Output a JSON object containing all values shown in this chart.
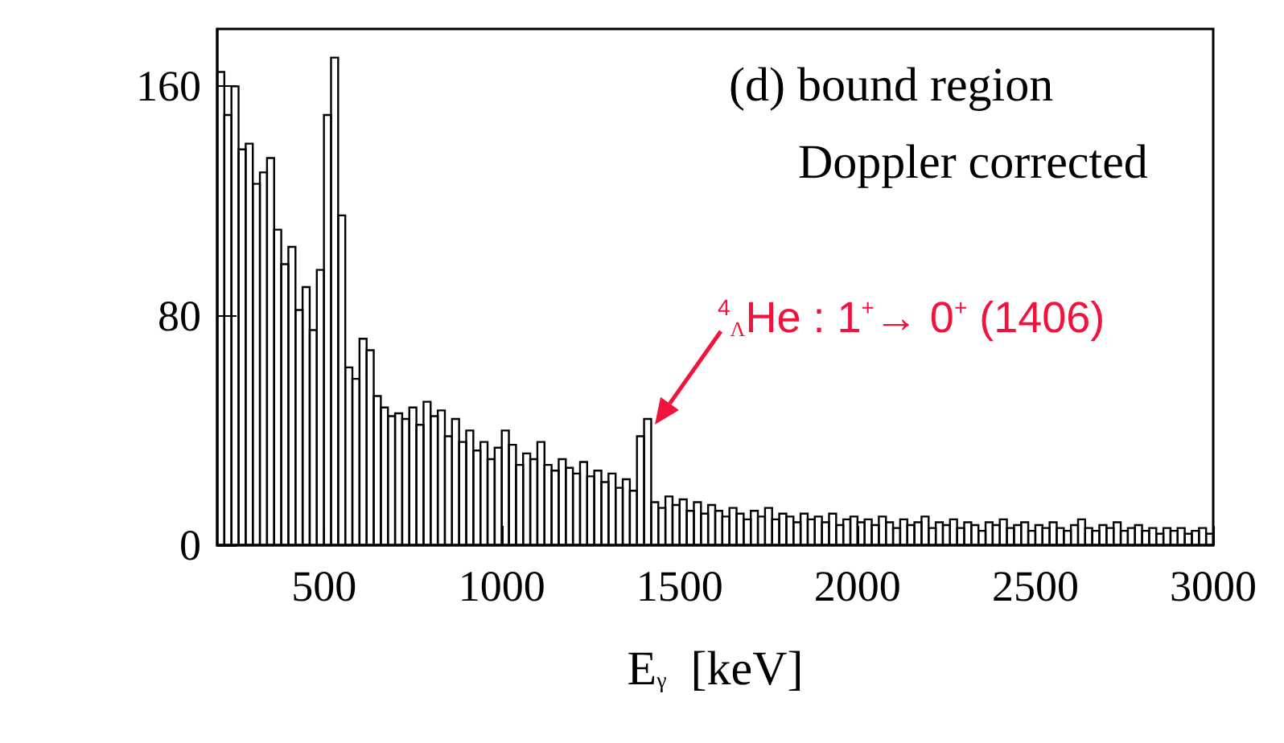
{
  "chart_data": {
    "type": "histogram",
    "xlabel": "E$_{γ}$  [keV]",
    "color": "#000000",
    "bins": [
      200,
      220,
      240,
      260,
      280,
      300,
      320,
      340,
      360,
      380,
      400,
      420,
      440,
      460,
      480,
      500,
      520,
      540,
      560,
      580,
      600,
      620,
      640,
      660,
      680,
      700,
      720,
      740,
      760,
      780,
      800,
      820,
      840,
      860,
      880,
      900,
      920,
      940,
      960,
      980,
      1000,
      1020,
      1040,
      1060,
      1080,
      1100,
      1120,
      1140,
      1160,
      1180,
      1200,
      1220,
      1240,
      1260,
      1280,
      1300,
      1320,
      1340,
      1360,
      1380,
      1400,
      1420,
      1440,
      1460,
      1480,
      1500,
      1520,
      1540,
      1560,
      1580,
      1600,
      1620,
      1640,
      1660,
      1680,
      1700,
      1720,
      1740,
      1760,
      1780,
      1800,
      1820,
      1840,
      1860,
      1880,
      1900,
      1920,
      1940,
      1960,
      1980,
      2000,
      2020,
      2040,
      2060,
      2080,
      2100,
      2120,
      2140,
      2160,
      2180,
      2200,
      2220,
      2240,
      2260,
      2280,
      2300,
      2320,
      2340,
      2360,
      2380,
      2400,
      2420,
      2440,
      2460,
      2480,
      2500,
      2520,
      2540,
      2560,
      2580,
      2600,
      2620,
      2640,
      2660,
      2680,
      2700,
      2720,
      2740,
      2760,
      2780,
      2800,
      2820,
      2840,
      2860,
      2880,
      2900,
      2920,
      2940,
      2960,
      2980,
      3000
    ],
    "values": [
      165,
      150,
      160,
      138,
      140,
      126,
      130,
      135,
      110,
      98,
      104,
      82,
      90,
      75,
      96,
      150,
      170,
      115,
      62,
      58,
      72,
      68,
      52,
      48,
      45,
      46,
      44,
      48,
      42,
      50,
      45,
      47,
      38,
      44,
      36,
      40,
      33,
      36,
      30,
      34,
      40,
      35,
      28,
      32,
      30,
      36,
      28,
      26,
      30,
      27,
      25,
      29,
      24,
      26,
      22,
      25,
      20,
      23,
      19,
      38,
      44,
      15,
      13,
      17,
      14,
      16,
      12,
      15,
      11,
      14,
      12,
      10,
      13,
      11,
      9,
      12,
      10,
      13,
      9,
      11,
      10,
      8,
      11,
      9,
      10,
      8,
      11,
      7,
      9,
      10,
      8,
      9,
      7,
      10,
      8,
      6,
      9,
      7,
      8,
      10,
      6,
      8,
      7,
      9,
      6,
      8,
      7,
      5,
      8,
      7,
      9,
      6,
      7,
      8,
      5,
      7,
      6,
      8,
      6,
      5,
      7,
      9,
      6,
      5,
      7,
      6,
      8,
      5,
      6,
      7,
      5,
      6,
      4,
      6,
      5,
      6,
      4,
      5,
      6,
      4
    ],
    "xlim": [
      200,
      3000
    ],
    "xticks": [
      500,
      1000,
      1500,
      2000,
      2500,
      3000
    ],
    "ylim": [
      0,
      180
    ],
    "yticks": [
      0,
      80,
      160
    ],
    "grid": false,
    "annotations": [
      "(d) bound region",
      "Doppler corrected",
      "$^{4}$$_{Λ}$He : 1$^{+}$→ 0$^{+}$ (1406)"
    ]
  }
}
